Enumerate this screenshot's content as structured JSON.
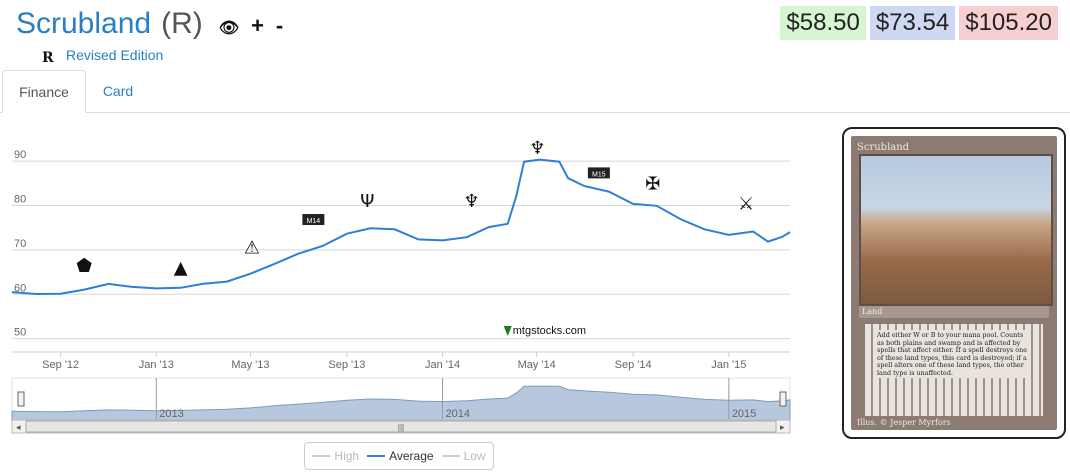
{
  "card": {
    "name": "Scrubland",
    "rarity": "(R)",
    "set_symbol": "R",
    "set_name": "Revised Edition",
    "icons": [
      "eye-icon",
      "plus-icon",
      "minus-icon"
    ],
    "plus_label": "+",
    "minus_label": "-"
  },
  "prices": {
    "low": "$58.50",
    "average": "$73.54",
    "high": "$105.20",
    "colors": {
      "low": "#d6f5d0",
      "average": "#cfd8f3",
      "high": "#f6d0d0"
    }
  },
  "tabs": [
    {
      "label": "Finance",
      "active": true
    },
    {
      "label": "Card",
      "active": false
    }
  ],
  "chart_data": {
    "type": "line",
    "title": "",
    "xlabel": "",
    "ylabel": "",
    "watermark": "mtgstocks.com",
    "ylim": [
      47,
      97
    ],
    "y_ticks": [
      50,
      60,
      70,
      80,
      90
    ],
    "x_range": [
      "2012-07-01",
      "2015-03-20"
    ],
    "x_ticks": [
      "Sep '12",
      "Jan '13",
      "May '13",
      "Sep '13",
      "Jan '14",
      "May '14",
      "Sep '14",
      "Jan '15"
    ],
    "series": [
      {
        "name": "Average",
        "color": "#2f7ed8",
        "points": [
          [
            "2012-07-01",
            60.5
          ],
          [
            "2012-08-01",
            60.2
          ],
          [
            "2012-09-01",
            60.0
          ],
          [
            "2012-10-01",
            61.2
          ],
          [
            "2012-11-01",
            62.2
          ],
          [
            "2012-12-01",
            61.8
          ],
          [
            "2013-01-01",
            61.2
          ],
          [
            "2013-02-01",
            61.6
          ],
          [
            "2013-03-01",
            62.2
          ],
          [
            "2013-04-01",
            63.0
          ],
          [
            "2013-05-01",
            64.5
          ],
          [
            "2013-06-01",
            67.0
          ],
          [
            "2013-07-01",
            69.0
          ],
          [
            "2013-08-01",
            71.0
          ],
          [
            "2013-09-01",
            73.5
          ],
          [
            "2013-10-01",
            75.0
          ],
          [
            "2013-11-01",
            74.5
          ],
          [
            "2013-12-01",
            72.5
          ],
          [
            "2014-01-01",
            72.0
          ],
          [
            "2014-02-01",
            73.0
          ],
          [
            "2014-03-01",
            75.0
          ],
          [
            "2014-03-25",
            76.0
          ],
          [
            "2014-04-05",
            82.0
          ],
          [
            "2014-04-15",
            90.0
          ],
          [
            "2014-05-05",
            90.2
          ],
          [
            "2014-05-30",
            90.0
          ],
          [
            "2014-06-10",
            86.0
          ],
          [
            "2014-07-01",
            84.5
          ],
          [
            "2014-08-01",
            83.0
          ],
          [
            "2014-09-01",
            80.5
          ],
          [
            "2014-10-01",
            79.8
          ],
          [
            "2014-11-01",
            77.0
          ],
          [
            "2014-12-01",
            74.5
          ],
          [
            "2015-01-01",
            73.5
          ],
          [
            "2015-02-01",
            74.0
          ],
          [
            "2015-02-20",
            72.0
          ],
          [
            "2015-03-10",
            72.8
          ],
          [
            "2015-03-20",
            74.0
          ]
        ]
      }
    ],
    "legend": [
      {
        "name": "High",
        "enabled": false
      },
      {
        "name": "Average",
        "enabled": true
      },
      {
        "name": "Low",
        "enabled": false
      }
    ],
    "navigator": {
      "year_labels": [
        "2013",
        "2014",
        "2015"
      ]
    },
    "set_release_markers": [
      {
        "date": "2012-10-01",
        "value": 66.5,
        "icon": "return-to-ravnica-set-icon"
      },
      {
        "date": "2013-02-01",
        "value": 66.0,
        "icon": "gatecrash-set-icon"
      },
      {
        "date": "2013-05-03",
        "value": 70.5,
        "icon": "dragons-maze-set-icon"
      },
      {
        "date": "2013-07-19",
        "value": 76.5,
        "icon": "magic-2014-set-icon",
        "label": "M14"
      },
      {
        "date": "2013-09-27",
        "value": 81.0,
        "icon": "theros-set-icon"
      },
      {
        "date": "2014-02-07",
        "value": 81.0,
        "icon": "born-of-the-gods-set-icon"
      },
      {
        "date": "2014-05-02",
        "value": 93.0,
        "icon": "journey-into-nyx-set-icon"
      },
      {
        "date": "2014-07-18",
        "value": 87.0,
        "icon": "magic-2015-set-icon",
        "label": "M15"
      },
      {
        "date": "2014-09-26",
        "value": 85.0,
        "icon": "khans-of-tarkir-set-icon"
      },
      {
        "date": "2015-01-23",
        "value": 80.5,
        "icon": "fate-reforged-set-icon"
      }
    ]
  },
  "card_image": {
    "title": "Scrubland",
    "type_line": "Land",
    "rules_text": "Add either W or B to your mana pool. Counts as both plains and swamp and is affected by spells that affect either. If a spell destroys one of these land types, this card is destroyed; if a spell alters one of these land types, the other land type is unaffected.",
    "illustrator": "Illus. © Jesper Myrfors"
  }
}
